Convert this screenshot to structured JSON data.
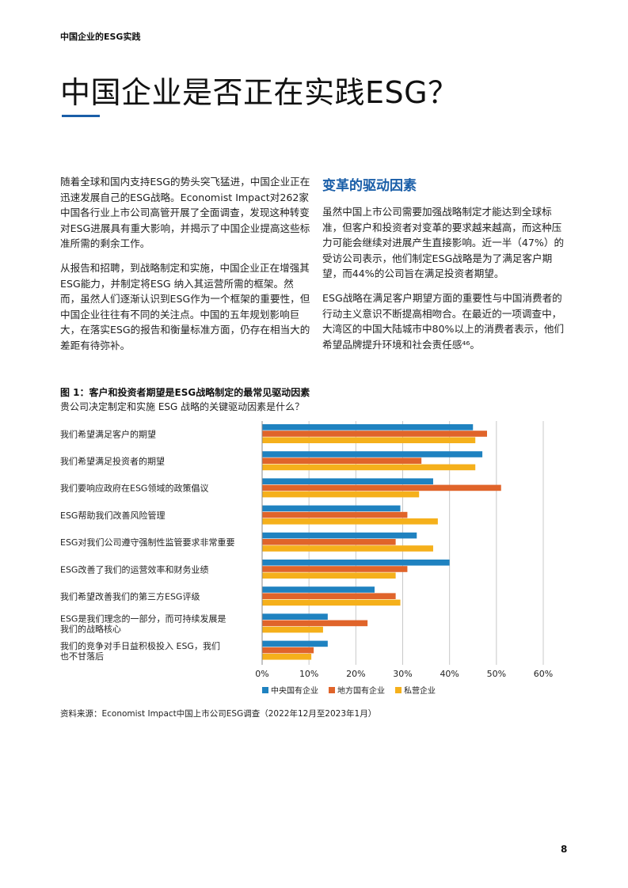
{
  "header": {
    "running_head": "中国企业的ESG实践"
  },
  "title": "中国企业是否正在实践ESG？",
  "left_column": {
    "p1": "随着全球和国内支持ESG的势头突飞猛进，中国企业正在迅速发展自己的ESG战略。Economist Impact对262家中国各行业上市公司高管开展了全面调查，发现这种转变对ESG进展具有重大影响，并揭示了中国企业提高这些标准所需的剩余工作。",
    "p2": "从报告和招聘，到战略制定和实施，中国企业正在增强其ESG能力，并制定将ESG 纳入其运营所需的框架。然而，虽然人们逐渐认识到ESG作为一个框架的重要性，但中国企业往往有不同的关注点。中国的五年规划影响巨大，在落实ESG的报告和衡量标准方面，仍存在相当大的差距有待弥补。"
  },
  "right_column": {
    "heading": "变革的驱动因素",
    "p1": "虽然中国上市公司需要加强战略制定才能达到全球标准，但客户和投资者对变革的要求越来越高，而这种压力可能会继续对进展产生直接影响。近一半（47%）的受访公司表示，他们制定ESG战略是为了满足客户期望，而44%的公司旨在满足投资者期望。",
    "p2": "ESG战略在满足客户期望方面的重要性与中国消费者的行动主义意识不断提高相吻合。在最近的一项调查中，大湾区的中国大陆城市中80%以上的消费者表示，他们希望品牌提升环境和社会责任感⁴⁶。"
  },
  "figure": {
    "title": "图 1：客户和投资者期望是ESG战略制定的最常见驱动因素",
    "subtitle": "贵公司决定制定和实施 ESG 战略的关键驱动因素是什么？",
    "source": "资料来源：Economist Impact中国上市公司ESG调查（2022年12月至2023年1月）"
  },
  "chart_data": {
    "type": "bar",
    "orientation": "horizontal",
    "categories": [
      "我们希望满足客户的期望",
      "我们希望满足投资者的期望",
      "我们要响应政府在ESG领域的政策倡议",
      "ESG帮助我们改善风险管理",
      "ESG对我们公司遵守强制性监管要求非常重要",
      "ESG改善了我们的运营效率和财务业绩",
      "我们希望改善我们的第三方ESG评级",
      "ESG是我们理念的一部分，而可持续发展是我们的战略核心",
      "我们的竞争对手日益积极投入 ESG，我们也不甘落后"
    ],
    "series": [
      {
        "name": "中央国有企业",
        "color": "#1f82c0",
        "values": [
          45,
          47,
          36.5,
          29.5,
          33,
          40,
          24,
          14,
          14
        ]
      },
      {
        "name": "地方国有企业",
        "color": "#e0642a",
        "values": [
          48,
          34,
          51,
          31,
          28.5,
          31,
          28.5,
          22.5,
          11
        ]
      },
      {
        "name": "私营企业",
        "color": "#f5b01b",
        "values": [
          45.5,
          45.5,
          33.5,
          37.5,
          36.5,
          28.5,
          29.5,
          13,
          10.5
        ]
      }
    ],
    "xlim": [
      0,
      60
    ],
    "xticks": [
      0,
      10,
      20,
      30,
      40,
      50,
      60
    ],
    "tick_suffix": "%",
    "grid": true,
    "legend": "bottom"
  },
  "page_number": "8"
}
